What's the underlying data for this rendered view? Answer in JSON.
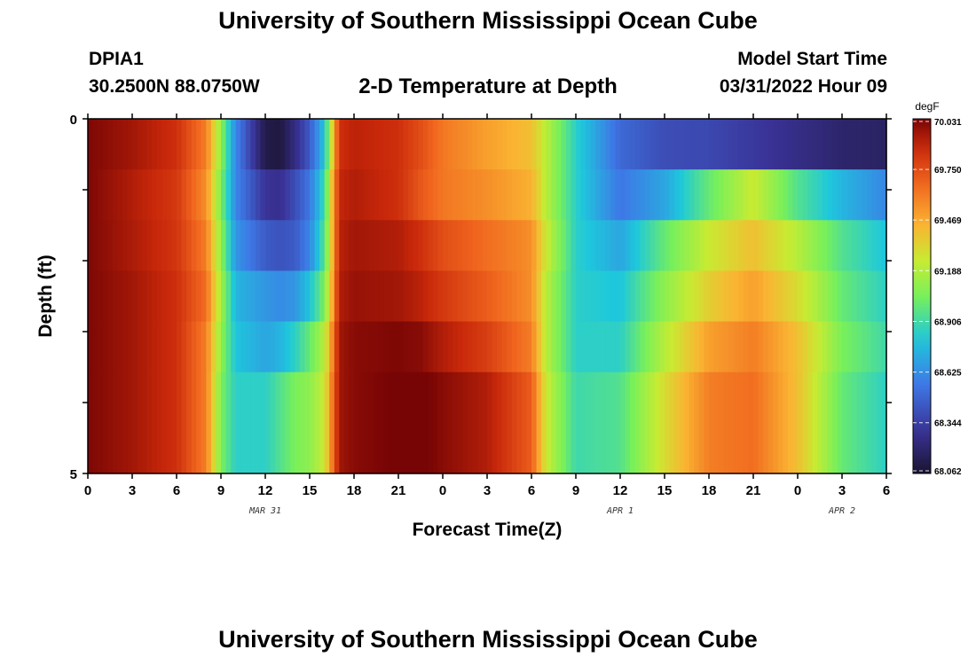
{
  "header": {
    "title": "University of Southern Mississippi Ocean Cube",
    "station_id": "DPIA1",
    "station_coords": "30.2500N  88.0750W",
    "plot_title": "2-D Temperature at Depth",
    "model_start_label": "Model Start Time",
    "model_start_time": "03/31/2022 Hour 09"
  },
  "footer": {
    "title": "University of Southern Mississippi Ocean Cube"
  },
  "chart_data": {
    "type": "heatmap",
    "xlabel": "Forecast Time(Z)",
    "ylabel": "Depth (ft)",
    "x_range_hours": [
      0,
      54
    ],
    "x_tick_labels": [
      "0",
      "3",
      "6",
      "9",
      "12",
      "15",
      "18",
      "21",
      "0",
      "3",
      "6",
      "9",
      "12",
      "15",
      "18",
      "21",
      "0",
      "3",
      "6"
    ],
    "date_labels": [
      {
        "label": "MAR 31",
        "hour": 12
      },
      {
        "label": "APR 1",
        "hour": 36
      },
      {
        "label": "APR 2",
        "hour": 51
      }
    ],
    "y_range": [
      0,
      5
    ],
    "y_tick_labels": [
      "0",
      "5"
    ],
    "depth_levels": [
      0,
      1,
      2,
      3,
      4,
      5
    ],
    "colorbar": {
      "unit": "degF",
      "min": 68.062,
      "max": 70.031,
      "tick_labels": [
        "70.031",
        "69.750",
        "69.469",
        "69.188",
        "68.906",
        "68.625",
        "68.344",
        "68.062"
      ]
    },
    "anchors_hours": [
      0,
      3,
      6,
      8,
      9,
      10,
      12,
      13,
      14,
      15,
      16,
      16.5,
      17,
      18,
      21,
      22.5,
      24,
      27,
      30,
      31,
      33,
      36,
      39,
      42,
      45,
      48,
      51,
      54
    ],
    "rows": [
      [
        70.02,
        69.95,
        69.85,
        69.6,
        69.1,
        68.6,
        68.12,
        68.1,
        68.25,
        68.45,
        68.8,
        69.3,
        69.85,
        69.9,
        69.85,
        69.75,
        69.62,
        69.5,
        69.4,
        69.2,
        68.85,
        68.5,
        68.4,
        68.38,
        68.32,
        68.26,
        68.2,
        68.18
      ],
      [
        70.02,
        69.92,
        69.82,
        69.55,
        69.05,
        68.6,
        68.3,
        68.28,
        68.4,
        68.55,
        68.9,
        69.4,
        69.88,
        69.92,
        69.85,
        69.72,
        69.62,
        69.55,
        69.45,
        69.2,
        68.85,
        68.55,
        68.7,
        69.0,
        69.25,
        68.95,
        68.75,
        68.6
      ],
      [
        70.02,
        69.93,
        69.83,
        69.6,
        69.1,
        68.65,
        68.45,
        68.42,
        68.45,
        68.6,
        68.95,
        69.4,
        69.9,
        69.95,
        69.92,
        69.85,
        69.75,
        69.65,
        69.55,
        69.25,
        68.85,
        68.7,
        69.0,
        69.25,
        69.4,
        69.2,
        68.95,
        68.8
      ],
      [
        70.02,
        69.95,
        69.85,
        69.65,
        69.15,
        68.75,
        68.65,
        68.62,
        68.65,
        68.8,
        69.05,
        69.45,
        69.92,
        69.97,
        69.95,
        69.9,
        69.82,
        69.7,
        69.55,
        69.2,
        68.85,
        68.8,
        69.1,
        69.35,
        69.5,
        69.3,
        69.0,
        68.85
      ],
      [
        70.02,
        69.95,
        69.85,
        69.6,
        69.1,
        68.8,
        68.7,
        68.75,
        68.85,
        69.0,
        69.2,
        69.55,
        69.95,
        70.0,
        70.02,
        70.0,
        69.92,
        69.8,
        69.6,
        69.2,
        68.85,
        68.85,
        69.2,
        69.5,
        69.6,
        69.4,
        69.05,
        68.9
      ],
      [
        70.02,
        69.95,
        69.85,
        69.6,
        69.05,
        68.85,
        68.85,
        68.95,
        69.05,
        69.1,
        69.25,
        69.6,
        69.95,
        70.0,
        70.04,
        70.05,
        70.0,
        69.92,
        69.7,
        69.25,
        68.9,
        68.95,
        69.3,
        69.6,
        69.65,
        69.4,
        69.0,
        68.85
      ]
    ]
  }
}
